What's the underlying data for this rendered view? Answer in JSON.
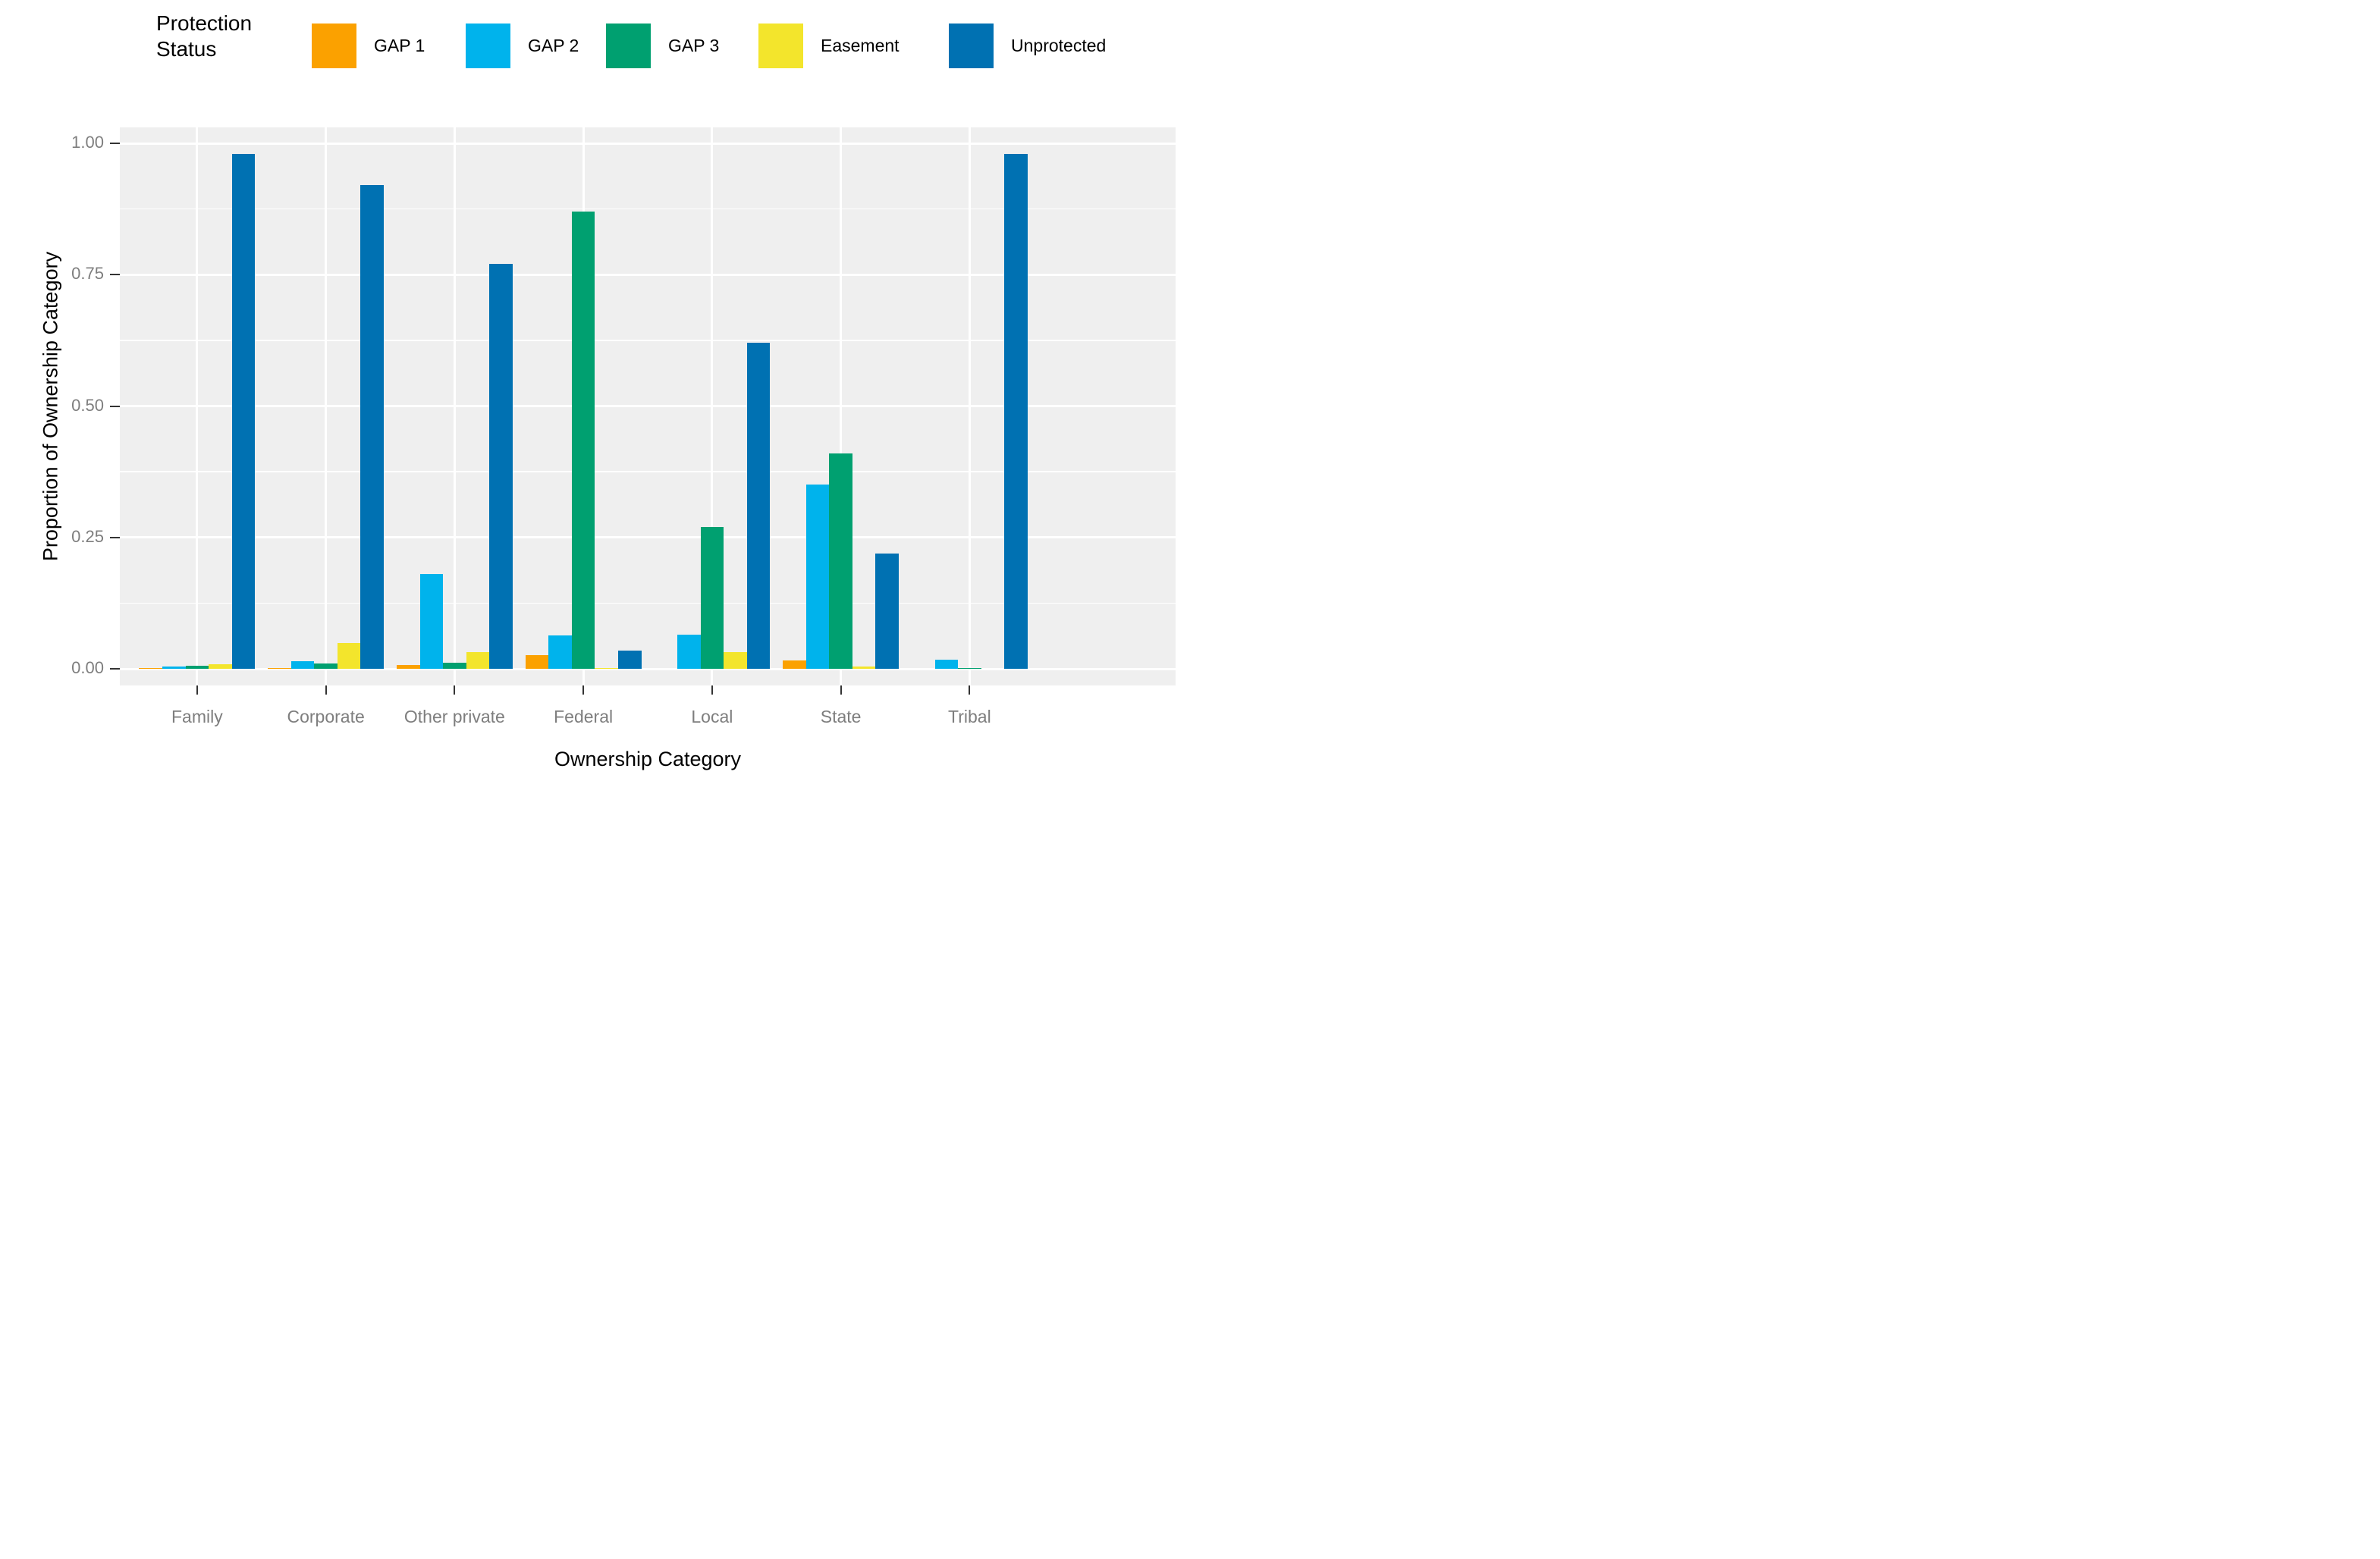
{
  "chart_data": {
    "type": "bar",
    "title": "",
    "legend": {
      "title": "Protection Status",
      "position": "top",
      "entries": [
        "GAP 1",
        "GAP 2",
        "GAP 3",
        "Easement",
        "Unprotected"
      ]
    },
    "xlabel": "Ownership Category",
    "ylabel": "Proportion of Ownership Category",
    "categories": [
      "Family",
      "Corporate",
      "Other private",
      "Federal",
      "Local",
      "State",
      "Tribal"
    ],
    "series": [
      {
        "name": "GAP 1",
        "color": "#FBA100",
        "values": [
          0.001,
          0.002,
          0.007,
          0.026,
          0,
          0.016,
          0
        ]
      },
      {
        "name": "GAP 2",
        "color": "#00B3EC",
        "values": [
          0.005,
          0.015,
          0.18,
          0.063,
          0.065,
          0.35,
          0.017
        ]
      },
      {
        "name": "GAP 3",
        "color": "#00A070",
        "values": [
          0.006,
          0.01,
          0.012,
          0.87,
          0.27,
          0.41,
          0.002
        ]
      },
      {
        "name": "Easement",
        "color": "#F3E52C",
        "values": [
          0.009,
          0.049,
          0.032,
          0.001,
          0.032,
          0.004,
          0
        ]
      },
      {
        "name": "Unprotected",
        "color": "#0071B2",
        "values": [
          0.98,
          0.92,
          0.77,
          0.035,
          0.62,
          0.22,
          0.98
        ]
      }
    ],
    "ylim": [
      0,
      1
    ],
    "yticks": [
      0.0,
      0.25,
      0.5,
      0.75,
      1.0
    ],
    "ytick_labels": [
      "0.00",
      "0.25",
      "0.50",
      "0.75",
      "1.00"
    ],
    "grid": {
      "h_major": [
        0,
        0.25,
        0.5,
        0.75,
        1.0
      ],
      "h_minor": [
        0.125,
        0.375,
        0.625,
        0.875
      ],
      "v_major": "category-centers",
      "grid_on": true
    }
  },
  "colors": {
    "background": "#FFFFFF",
    "panel_bg": "#EFEFEF",
    "gridline": "#FFFFFF",
    "tick_text": "#7E7E7E",
    "axis_title_text": "#000000",
    "tick_mark": "#333333"
  }
}
